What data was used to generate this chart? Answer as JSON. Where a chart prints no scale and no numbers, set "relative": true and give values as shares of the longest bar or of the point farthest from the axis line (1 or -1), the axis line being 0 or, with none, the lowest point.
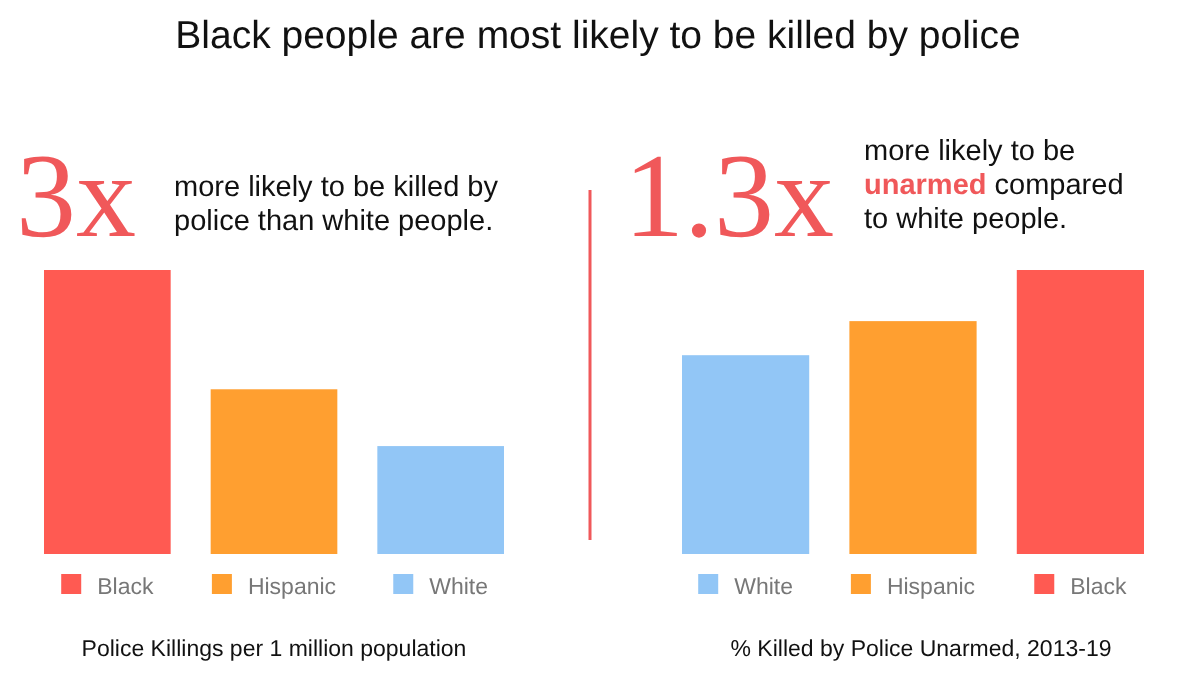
{
  "chart_data": [
    {
      "type": "bar",
      "title": "Black people are most likely to be killed by police",
      "relative": true,
      "categories": [
        "Black",
        "Hispanic",
        "White"
      ],
      "values": [
        1,
        0.58,
        0.38
      ],
      "colors": [
        "#ff5a52",
        "#ff9f30",
        "#92c6f6"
      ],
      "xlabel": "Police Killings per 1 million population",
      "annotations": [
        "3x",
        "more likely to be killed by",
        "police than white people."
      ]
    },
    {
      "type": "bar",
      "relative": true,
      "categories": [
        "White",
        "Hispanic",
        "Black"
      ],
      "values": [
        0.7,
        0.82,
        1
      ],
      "colors": [
        "#92c6f6",
        "#ff9f30",
        "#ff5a52"
      ],
      "xlabel": "% Killed by Police Unarmed, 2013-19",
      "annotations": [
        "1.3x",
        "more likely to be",
        "unarmed",
        "compared",
        "to white people."
      ]
    }
  ]
}
